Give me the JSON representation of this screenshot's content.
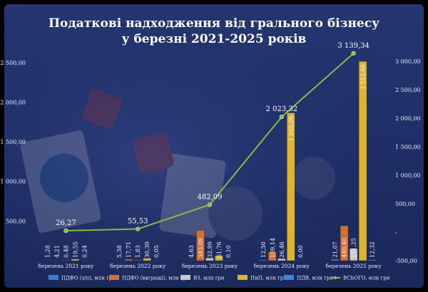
{
  "title_line1": "Податкові надходження від грального бізнесу",
  "title_line2": "у березні 2021-2025 років",
  "chart_data": {
    "type": "bar",
    "categories": [
      "березень 2021 року",
      "березень 2022 року",
      "березень 2023 року",
      "березень 2024 року",
      "березень 2025 року"
    ],
    "series": [
      {
        "name": "ПДФО (з/п), млн грн",
        "axis": "left",
        "color": "#2f7fd6",
        "values": [
          1.28,
          5.38,
          4.63,
          12.5,
          21.07
        ],
        "labels": [
          "1,28",
          "5,38",
          "4,63",
          "12,50",
          "21,07"
        ]
      },
      {
        "name": "ПДФО (виграші), млн грн",
        "axis": "left",
        "color": "#d4712e",
        "values": [
          4.21,
          17.71,
          383.09,
          109.14,
          440.4
        ],
        "labels": [
          "4,21",
          "17,71",
          "383,09",
          "109,14",
          "440,40"
        ]
      },
      {
        "name": "ВЗ, млн грн",
        "axis": "left",
        "color": "#c8c8c8",
        "values": [
          0.48,
          1.83,
          32.99,
          26.46,
          151.25
        ],
        "labels": [
          "0,48",
          "1,83",
          "32,99",
          "26,46",
          "151,25"
        ]
      },
      {
        "name": "ПнП, млн грн",
        "axis": "left",
        "color": "#e0b42a",
        "values": [
          19.55,
          30.39,
          61.76,
          1865.06,
          2513.66
        ],
        "labels": [
          "19,55",
          "30,39",
          "61,76",
          "1 865,06",
          "2 513,66"
        ]
      },
      {
        "name": "ПДВ, млн грн",
        "axis": "left",
        "color": "#3d86d8",
        "values": [
          0.24,
          0.05,
          0.1,
          0.0,
          12.32
        ],
        "labels": [
          "0,24",
          "0,05",
          "0,10",
          "0,00",
          "12,32"
        ]
      },
      {
        "name": "ВСЬОГО, млн грн",
        "type": "line",
        "axis": "right",
        "color": "#7cc142",
        "values": [
          26.27,
          55.53,
          482.09,
          2023.32,
          3139.34
        ],
        "labels": [
          "26,27",
          "55,53",
          "482,09",
          "2 023,32",
          "3 139,34"
        ]
      }
    ],
    "left_axis": {
      "ticks": [
        500,
        1000,
        1500,
        2000,
        2500
      ],
      "tick_labels": [
        "500,00",
        "1 000,00",
        "1 500,00",
        "2 000,00",
        "2 500,00"
      ],
      "ylim": [
        0,
        2660
      ]
    },
    "right_axis": {
      "ticks": [
        -500,
        0,
        500,
        1000,
        1500,
        2000,
        2500,
        3000
      ],
      "tick_labels": [
        "-500,00",
        "-",
        "500,00",
        "1 000,00",
        "1 500,00",
        "2 000,00",
        "2 500,00",
        "3 000,00"
      ],
      "ylim": [
        -500,
        3200
      ]
    },
    "legend_position": "bottom",
    "grid": false
  }
}
